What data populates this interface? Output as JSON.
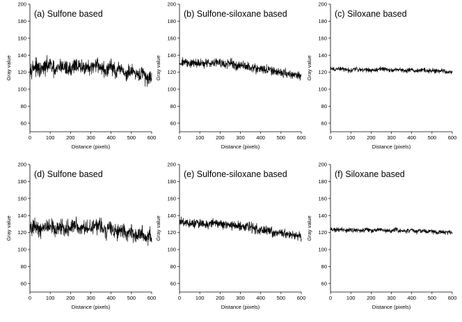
{
  "chart_data": [
    {
      "type": "line",
      "title": "(a) Sulfone based",
      "xlabel": "Distance (pixels)",
      "ylabel": "Gray value",
      "xlim": [
        0,
        600
      ],
      "ylim": [
        50,
        200
      ],
      "xticks": [
        0,
        100,
        200,
        300,
        400,
        500,
        600
      ],
      "yticks": [
        60,
        80,
        100,
        120,
        140,
        160,
        180,
        200
      ],
      "grid": false,
      "series": [
        {
          "x": [
            0,
            25,
            50,
            75,
            100,
            125,
            150,
            175,
            200,
            225,
            250,
            275,
            300,
            325,
            350,
            375,
            400,
            425,
            450,
            475,
            500,
            525,
            550,
            575,
            600
          ],
          "values": [
            124,
            127,
            121,
            126,
            129,
            120,
            128,
            125,
            123,
            130,
            124,
            127,
            122,
            131,
            126,
            120,
            129,
            118,
            125,
            116,
            122,
            114,
            120,
            112,
            117
          ],
          "noise_amplitude": 7
        }
      ]
    },
    {
      "type": "line",
      "title": "(b) Sulfone-siloxane based",
      "xlabel": "Distance (pixels)",
      "ylabel": "Gray value",
      "xlim": [
        0,
        600
      ],
      "ylim": [
        50,
        200
      ],
      "xticks": [
        0,
        100,
        200,
        300,
        400,
        500,
        600
      ],
      "yticks": [
        60,
        80,
        100,
        120,
        140,
        160,
        180,
        200
      ],
      "grid": false,
      "series": [
        {
          "x": [
            0,
            25,
            50,
            75,
            100,
            125,
            150,
            175,
            200,
            225,
            250,
            275,
            300,
            325,
            350,
            375,
            400,
            425,
            450,
            475,
            500,
            525,
            550,
            575,
            600
          ],
          "values": [
            131,
            132,
            130,
            131,
            130,
            131,
            130,
            133,
            131,
            129,
            130,
            128,
            128,
            127,
            126,
            124,
            124,
            123,
            122,
            120,
            120,
            119,
            117,
            116,
            115
          ],
          "noise_amplitude": 4
        }
      ]
    },
    {
      "type": "line",
      "title": "(c) Siloxane based",
      "xlabel": "Distance (pixels)",
      "ylabel": "Gray value",
      "xlim": [
        0,
        600
      ],
      "ylim": [
        50,
        200
      ],
      "xticks": [
        0,
        100,
        200,
        300,
        400,
        500,
        600
      ],
      "yticks": [
        60,
        80,
        100,
        120,
        140,
        160,
        180,
        200
      ],
      "grid": false,
      "series": [
        {
          "x": [
            0,
            25,
            50,
            75,
            100,
            125,
            150,
            175,
            200,
            225,
            250,
            275,
            300,
            325,
            350,
            375,
            400,
            425,
            450,
            475,
            500,
            525,
            550,
            575,
            600
          ],
          "values": [
            124,
            123,
            124,
            123,
            122,
            124,
            123,
            123,
            122,
            123,
            124,
            123,
            122,
            123,
            123,
            122,
            123,
            122,
            123,
            122,
            122,
            121,
            122,
            120,
            121
          ],
          "noise_amplitude": 2
        }
      ]
    },
    {
      "type": "line",
      "title": "(d) Sulfone based",
      "xlabel": "Distance (pixels)",
      "ylabel": "Gray value",
      "xlim": [
        0,
        600
      ],
      "ylim": [
        50,
        200
      ],
      "xticks": [
        0,
        100,
        200,
        300,
        400,
        500,
        600
      ],
      "yticks": [
        60,
        80,
        100,
        120,
        140,
        160,
        180,
        200
      ],
      "grid": false,
      "series": [
        {
          "x": [
            0,
            25,
            50,
            75,
            100,
            125,
            150,
            175,
            200,
            225,
            250,
            275,
            300,
            325,
            350,
            375,
            400,
            425,
            450,
            475,
            500,
            525,
            550,
            575,
            600
          ],
          "values": [
            123,
            126,
            121,
            127,
            128,
            122,
            126,
            124,
            125,
            129,
            123,
            128,
            124,
            130,
            127,
            121,
            128,
            120,
            124,
            117,
            121,
            115,
            119,
            113,
            116
          ],
          "noise_amplitude": 7
        }
      ]
    },
    {
      "type": "line",
      "title": "(e) Sulfone-siloxane based",
      "xlabel": "Distance (pixels)",
      "ylabel": "Gray value",
      "xlim": [
        0,
        600
      ],
      "ylim": [
        50,
        200
      ],
      "xticks": [
        0,
        100,
        200,
        300,
        400,
        500,
        600
      ],
      "yticks": [
        60,
        80,
        100,
        120,
        140,
        160,
        180,
        200
      ],
      "grid": false,
      "series": [
        {
          "x": [
            0,
            25,
            50,
            75,
            100,
            125,
            150,
            175,
            200,
            225,
            250,
            275,
            300,
            325,
            350,
            375,
            400,
            425,
            450,
            475,
            500,
            525,
            550,
            575,
            600
          ],
          "values": [
            132,
            131,
            130,
            131,
            131,
            130,
            131,
            132,
            130,
            129,
            129,
            128,
            127,
            127,
            126,
            125,
            123,
            123,
            121,
            120,
            119,
            118,
            117,
            116,
            115
          ],
          "noise_amplitude": 4
        }
      ]
    },
    {
      "type": "line",
      "title": "(f) Siloxane based",
      "xlabel": "Distance (pixels)",
      "ylabel": "Gray value",
      "xlim": [
        0,
        600
      ],
      "ylim": [
        50,
        200
      ],
      "xticks": [
        0,
        100,
        200,
        300,
        400,
        500,
        600
      ],
      "yticks": [
        60,
        80,
        100,
        120,
        140,
        160,
        180,
        200
      ],
      "grid": false,
      "series": [
        {
          "x": [
            0,
            25,
            50,
            75,
            100,
            125,
            150,
            175,
            200,
            225,
            250,
            275,
            300,
            325,
            350,
            375,
            400,
            425,
            450,
            475,
            500,
            525,
            550,
            575,
            600
          ],
          "values": [
            124,
            123,
            124,
            122,
            123,
            123,
            122,
            124,
            122,
            123,
            123,
            122,
            122,
            123,
            122,
            122,
            123,
            121,
            122,
            121,
            122,
            120,
            121,
            120,
            121
          ],
          "noise_amplitude": 2
        }
      ]
    }
  ]
}
